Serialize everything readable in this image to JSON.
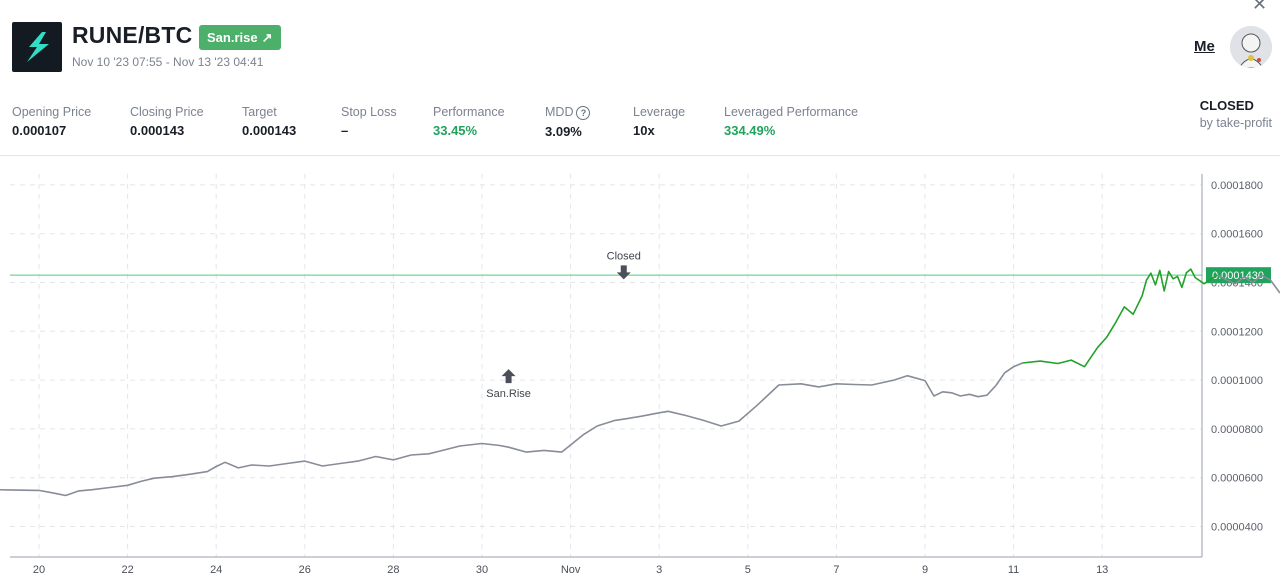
{
  "header": {
    "pair": "RUNE/BTC",
    "badge_label": "San.rise",
    "badge_icon": "arrow-up-right-icon",
    "date_range": "Nov 10 '23 07:55 - Nov 13 '23 04:41",
    "user_link": "Me"
  },
  "stats": [
    {
      "label": "Opening Price",
      "value": "0.000107",
      "highlight": false
    },
    {
      "label": "Closing Price",
      "value": "0.000143",
      "highlight": false
    },
    {
      "label": "Target",
      "value": "0.000143",
      "highlight": false
    },
    {
      "label": "Stop Loss",
      "value": "–",
      "highlight": false
    },
    {
      "label": "Performance",
      "value": "33.45%",
      "highlight": true
    },
    {
      "label": "MDD",
      "value": "3.09%",
      "highlight": false
    },
    {
      "label": "Leverage",
      "value": "10x",
      "highlight": false
    },
    {
      "label": "Leveraged Performance",
      "value": "334.49%",
      "highlight": true
    }
  ],
  "status": {
    "title": "CLOSED",
    "subtitle": "by take-profit"
  },
  "colors": {
    "accent_green": "#21a35d",
    "badge_green": "#4caf6a",
    "price_line": "#878c98",
    "signal_line": "#23a12b",
    "target_line": "#4ccf7a"
  },
  "chart_data": {
    "type": "line",
    "x_tick_labels": [
      "20",
      "22",
      "24",
      "26",
      "28",
      "30",
      "Nov",
      "3",
      "5",
      "7",
      "9",
      "11",
      "13"
    ],
    "y_tick_labels": [
      "0.0000400",
      "0.0000600",
      "0.0000800",
      "0.0001000",
      "0.0001200",
      "0.0001400",
      "0.0001600",
      "0.0001800"
    ],
    "ylim": [
      3.45e-05,
      0.0001845
    ],
    "target_price": 0.000143,
    "target_label": "0.0001430",
    "annotations": [
      {
        "text": "San.Rise",
        "x": 10.6,
        "y": 0.0001045,
        "direction": "up"
      },
      {
        "text": "Closed",
        "x": 13.2,
        "y": 0.000147,
        "direction": "down"
      }
    ],
    "series": [
      {
        "style": "grey",
        "x": [
          -1.5,
          -0.7,
          0.0,
          0.3,
          0.6,
          0.9,
          1.2,
          1.6,
          2.0,
          2.3,
          2.6,
          3.0,
          3.4,
          3.8,
          4.0,
          4.2,
          4.5,
          4.8,
          5.2,
          5.6,
          6.0,
          6.4,
          6.8,
          7.2,
          7.6,
          8.0,
          8.4,
          8.8,
          9.0,
          9.5,
          10.0,
          10.4,
          10.6,
          11.0,
          11.4,
          11.8,
          12.3,
          12.6,
          13.0,
          13.3,
          13.6,
          14.0,
          14.2,
          14.6,
          15.0,
          15.4,
          15.8,
          16.2,
          16.7,
          17.2,
          17.6,
          18.0,
          18.4,
          18.8,
          19.3,
          19.6,
          20.0,
          20.2,
          20.4,
          20.6,
          20.8,
          21.0,
          21.2,
          21.4,
          21.6
        ],
        "y": [
          5.53e-05,
          5.5e-05,
          5.48e-05,
          5.38e-05,
          5.27e-05,
          5.46e-05,
          5.51e-05,
          5.6e-05,
          5.69e-05,
          5.85e-05,
          5.98e-05,
          6.04e-05,
          6.14e-05,
          6.25e-05,
          6.46e-05,
          6.63e-05,
          6.4e-05,
          6.52e-05,
          6.48e-05,
          6.58e-05,
          6.68e-05,
          6.48e-05,
          6.58e-05,
          6.68e-05,
          6.87e-05,
          6.73e-05,
          6.93e-05,
          6.98e-05,
          7.07e-05,
          7.3e-05,
          7.4e-05,
          7.32e-05,
          7.25e-05,
          7.05e-05,
          7.12e-05,
          7.05e-05,
          7.78e-05,
          8.12e-05,
          8.35e-05,
          8.43e-05,
          8.52e-05,
          8.66e-05,
          8.72e-05,
          8.55e-05,
          8.35e-05,
          8.12e-05,
          8.32e-05,
          8.95e-05,
          9.8e-05,
          9.85e-05,
          9.72e-05,
          9.85e-05,
          9.82e-05,
          9.8e-05,
          0.0001,
          0.0001018,
          9.98e-05,
          9.35e-05,
          9.52e-05,
          9.48e-05,
          9.35e-05,
          9.42e-05,
          9.32e-05,
          9.38e-05,
          9.78e-05
        ]
      },
      {
        "style": "grey",
        "x": [
          21.6,
          21.8,
          22.0,
          22.2
        ],
        "y": [
          9.78e-05,
          0.000103,
          0.0001055,
          0.000107
        ]
      },
      {
        "style": "green",
        "x": [
          22.2,
          22.6,
          23.0,
          23.3,
          23.6,
          23.9,
          24.1,
          24.3,
          24.5,
          24.7,
          24.9,
          25.0,
          25.1,
          25.2,
          25.3,
          25.4,
          25.5,
          25.6,
          25.7,
          25.8,
          25.9,
          26.0,
          26.1,
          26.3,
          26.6
        ],
        "y": [
          0.000107,
          0.0001078,
          0.0001068,
          0.0001082,
          0.0001055,
          0.0001135,
          0.0001175,
          0.0001235,
          0.00013,
          0.000127,
          0.0001345,
          0.000141,
          0.0001438,
          0.000139,
          0.000145,
          0.0001365,
          0.0001445,
          0.0001415,
          0.0001425,
          0.000138,
          0.000144,
          0.0001455,
          0.000142,
          0.0001395,
          0.000143
        ]
      },
      {
        "style": "grey",
        "x": [
          26.6,
          26.8,
          27.0,
          27.2,
          27.4,
          27.6,
          27.8,
          28.0,
          28.2,
          28.4,
          28.6,
          28.8,
          29.0,
          29.2,
          29.4,
          29.6
        ],
        "y": [
          0.000143,
          0.0001412,
          0.0001395,
          0.0001422,
          0.00014,
          0.000143,
          0.000141,
          0.000136,
          0.0001332,
          0.0001352,
          0.0001325,
          0.0001342,
          0.0001318,
          0.0001326,
          0.000131,
          0.0001322
        ]
      }
    ]
  }
}
